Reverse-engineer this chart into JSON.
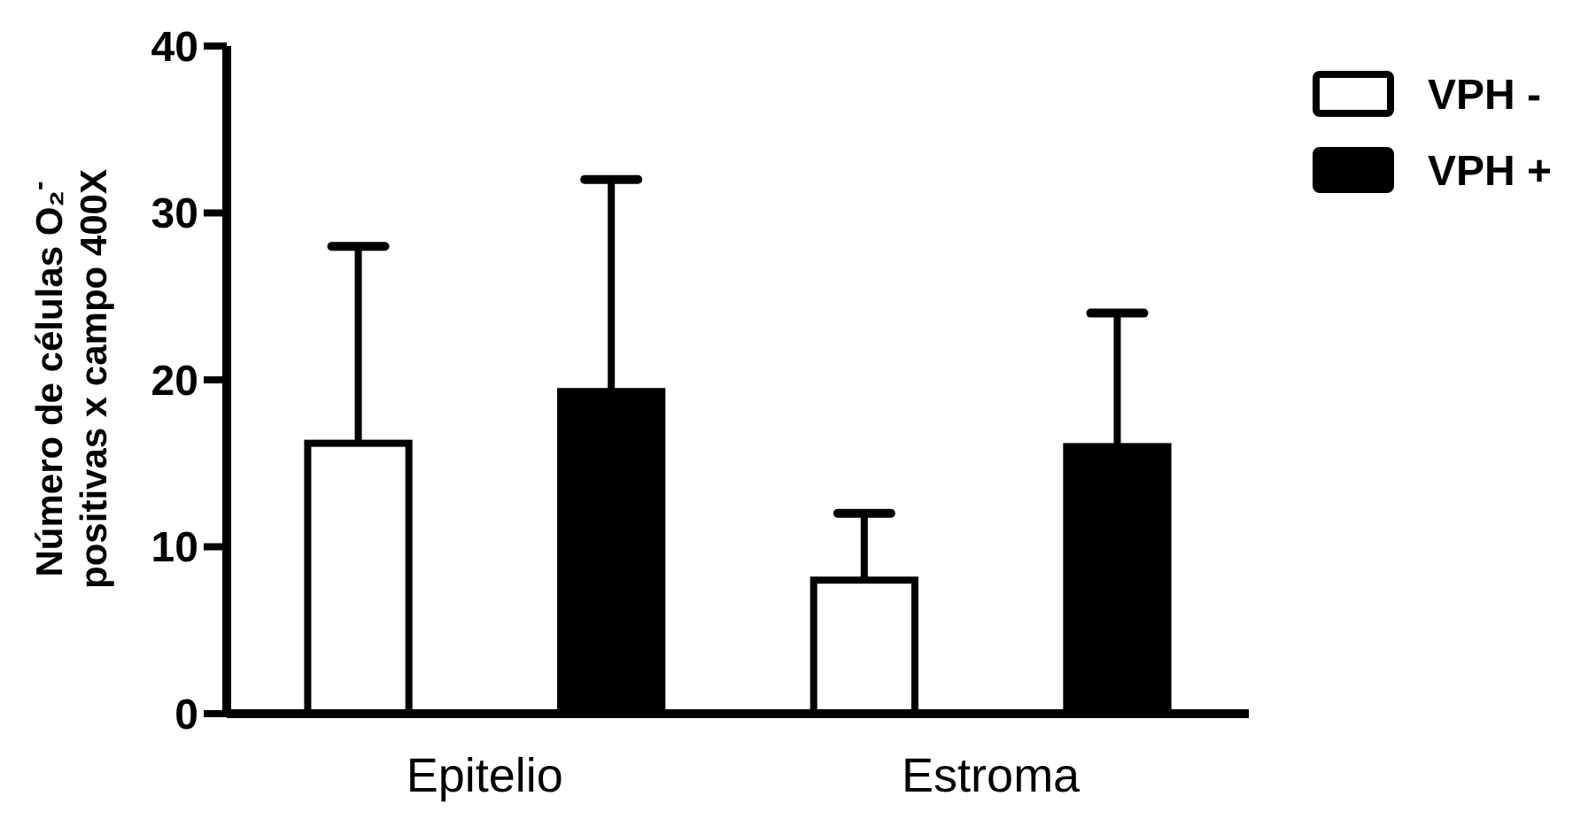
{
  "chart_data": {
    "type": "bar",
    "ylabel": "Número de células  O₂$^{-}$\npositivas x campo 400X",
    "categories": [
      "Epitelio",
      "Estroma"
    ],
    "series": [
      {
        "name": "VPH -",
        "color": "#ffffff",
        "values": [
          16.2,
          8
        ],
        "errors": [
          [
            16.2,
            28
          ],
          [
            8,
            12
          ]
        ]
      },
      {
        "name": "VPH +",
        "color": "#000000",
        "values": [
          19.3,
          16
        ],
        "errors": [
          [
            19.3,
            32
          ],
          [
            16,
            24
          ]
        ]
      }
    ],
    "ylim": [
      0,
      40
    ],
    "yticks": [
      0,
      10,
      20,
      30,
      40
    ],
    "legend": "top right"
  }
}
